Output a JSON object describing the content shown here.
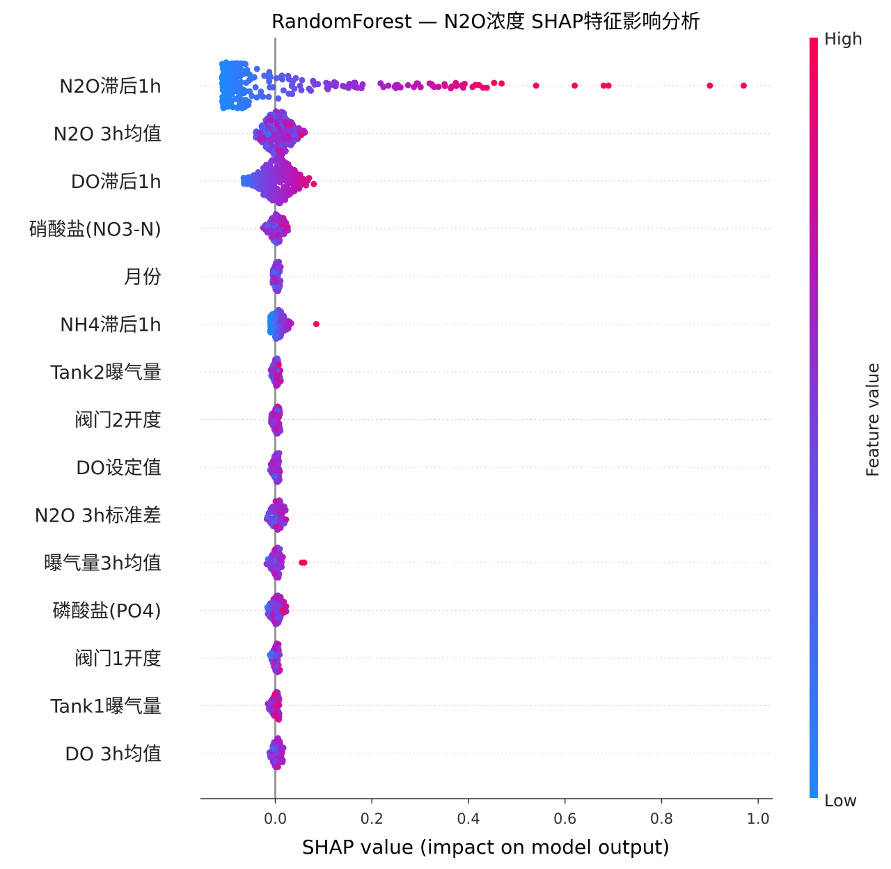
{
  "chart_data": {
    "type": "scatter",
    "subtype": "shap-beeswarm",
    "title": "RandomForest — N2O浓度 SHAP特征影响分析",
    "xlabel": "SHAP value (impact on model output)",
    "xlim": [
      -0.155,
      1.03
    ],
    "xticks": [
      "0.0",
      "0.2",
      "0.4",
      "0.6",
      "0.8",
      "1.0"
    ],
    "xtick_values": [
      0.0,
      0.2,
      0.4,
      0.6,
      0.8,
      1.0
    ],
    "grid": "horizontal dotted per feature",
    "colorbar": {
      "label": "Feature value",
      "high": "High",
      "low": "Low",
      "color_low": "#1e88ff",
      "color_high": "#ff0052"
    },
    "features": [
      {
        "name": "N2O滞后1h",
        "range": [
          -0.11,
          0.48
        ],
        "outliers": [
          0.54,
          0.62,
          0.68,
          0.69,
          0.9,
          0.97
        ]
      },
      {
        "name": "N2O 3h均值",
        "range": [
          -0.04,
          0.1
        ],
        "outliers": []
      },
      {
        "name": "DO滞后1h",
        "range": [
          -0.08,
          0.095
        ],
        "outliers": []
      },
      {
        "name": "硝酸盐(NO3-N)",
        "range": [
          -0.025,
          0.04
        ],
        "outliers": []
      },
      {
        "name": "月份",
        "range": [
          -0.005,
          0.02
        ],
        "outliers": []
      },
      {
        "name": "NH4滞后1h",
        "range": [
          -0.01,
          0.055
        ],
        "outliers": [
          0.085
        ]
      },
      {
        "name": "Tank2曝气量",
        "range": [
          -0.01,
          0.015
        ],
        "outliers": []
      },
      {
        "name": "阀门2开度",
        "range": [
          -0.01,
          0.015
        ],
        "outliers": []
      },
      {
        "name": "DO设定值",
        "range": [
          -0.012,
          0.015
        ],
        "outliers": []
      },
      {
        "name": "N2O 3h标准差",
        "range": [
          -0.02,
          0.038
        ],
        "outliers": []
      },
      {
        "name": "曝气量3h均值",
        "range": [
          -0.02,
          0.02
        ],
        "outliers": [
          0.055,
          0.06
        ]
      },
      {
        "name": "磷酸盐(PO4)",
        "range": [
          -0.025,
          0.03
        ],
        "outliers": []
      },
      {
        "name": "阀门1开度",
        "range": [
          -0.012,
          0.012
        ],
        "outliers": []
      },
      {
        "name": "Tank1曝气量",
        "range": [
          -0.025,
          0.008
        ],
        "outliers": []
      },
      {
        "name": "DO 3h均值",
        "range": [
          -0.012,
          0.025
        ],
        "outliers": []
      }
    ]
  }
}
